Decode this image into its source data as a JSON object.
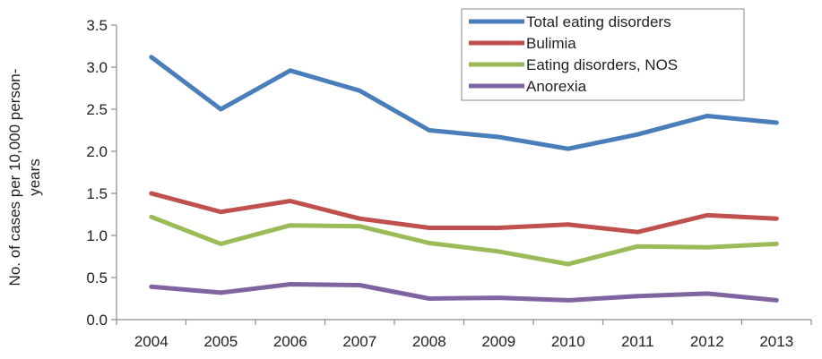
{
  "chart_data": {
    "type": "line",
    "title": "",
    "xlabel": "",
    "ylabel": "No. of cases per 10,000 person-years",
    "ylabel_lines": [
      "No. of cases per 10,000 person-",
      "years"
    ],
    "x": [
      "2004",
      "2005",
      "2006",
      "2007",
      "2008",
      "2009",
      "2010",
      "2011",
      "2012",
      "2013"
    ],
    "ylim": [
      0,
      3.5
    ],
    "yticks": [
      "0.0",
      "0.5",
      "1.0",
      "1.5",
      "2.0",
      "2.5",
      "3.0",
      "3.5"
    ],
    "grid": false,
    "legend_position": "top-right",
    "series": [
      {
        "name": "Total eating disorders",
        "color": "#4a7ebb",
        "values": [
          3.12,
          2.5,
          2.96,
          2.72,
          2.25,
          2.17,
          2.03,
          2.2,
          2.42,
          2.34
        ]
      },
      {
        "name": "Bulimia",
        "color": "#c0504d",
        "values": [
          1.5,
          1.28,
          1.41,
          1.2,
          1.09,
          1.09,
          1.13,
          1.04,
          1.24,
          1.2
        ]
      },
      {
        "name": "Eating disorders, NOS",
        "color": "#9bbb59",
        "values": [
          1.22,
          0.9,
          1.12,
          1.11,
          0.91,
          0.81,
          0.66,
          0.87,
          0.86,
          0.9
        ]
      },
      {
        "name": "Anorexia",
        "color": "#8064a2",
        "values": [
          0.39,
          0.32,
          0.42,
          0.41,
          0.25,
          0.26,
          0.23,
          0.28,
          0.31,
          0.23
        ]
      }
    ]
  }
}
